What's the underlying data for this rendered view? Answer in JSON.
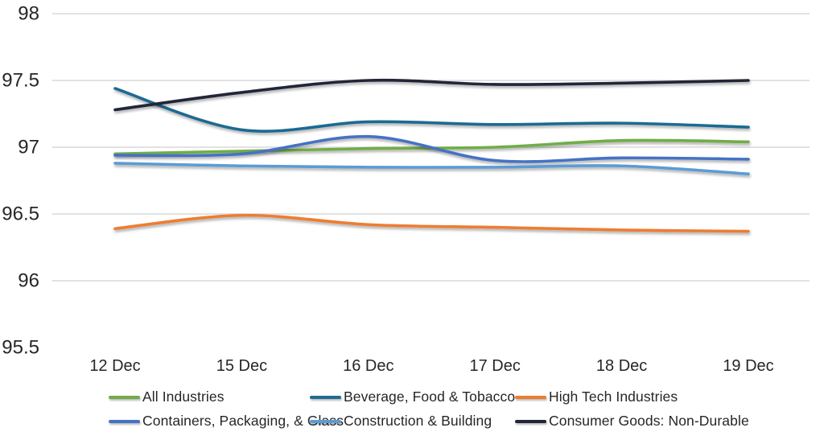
{
  "chart_data": {
    "type": "line",
    "title": "",
    "xlabel": "",
    "ylabel": "",
    "smooth": true,
    "grid": true,
    "legend_position": "bottom",
    "ylim": [
      95.5,
      98
    ],
    "categories": [
      "12 Dec",
      "15 Dec",
      "16 Dec",
      "17 Dec",
      "18 Dec",
      "19 Dec"
    ],
    "y_ticks": [
      {
        "label": "98",
        "value": 98,
        "grid": true
      },
      {
        "label": "97.5",
        "value": 97.5,
        "grid": true
      },
      {
        "label": "97",
        "value": 97,
        "grid": true
      },
      {
        "label": "96.5",
        "value": 96.5,
        "grid": true
      },
      {
        "label": "96",
        "value": 96,
        "grid": true
      },
      {
        "label": "95.5",
        "value": 95.5,
        "grid": false
      }
    ],
    "series": [
      {
        "name": "All Industries",
        "color": "#70AD47",
        "values": [
          96.95,
          96.97,
          96.99,
          97.0,
          97.05,
          97.04
        ]
      },
      {
        "name": "Beverage, Food & Tobacco",
        "color": "#1F6B93",
        "values": [
          97.44,
          97.13,
          97.19,
          97.17,
          97.18,
          97.15
        ]
      },
      {
        "name": "High Tech Industries",
        "color": "#ED7D31",
        "values": [
          96.39,
          96.49,
          96.42,
          96.4,
          96.38,
          96.37
        ]
      },
      {
        "name": "Containers, Packaging, & Glass",
        "color": "#4472C4",
        "values": [
          96.94,
          96.95,
          97.08,
          96.9,
          96.92,
          96.91
        ]
      },
      {
        "name": "Construction & Building",
        "color": "#5B9BD5",
        "values": [
          96.88,
          96.86,
          96.85,
          96.85,
          96.86,
          96.8
        ]
      },
      {
        "name": "Consumer Goods: Non-Durable",
        "color": "#212539",
        "values": [
          97.28,
          97.41,
          97.5,
          97.47,
          97.48,
          97.5
        ]
      }
    ],
    "legend_rows": [
      [
        "All Industries",
        "Beverage, Food & Tobacco",
        "High Tech Industries"
      ],
      [
        "Containers, Packaging, & Glass",
        "Construction & Building",
        "Consumer Goods: Non-Durable"
      ]
    ]
  },
  "colors": {
    "background": "#FFFFFF",
    "gridline": "#E2E2E2",
    "axis_text": "#262626"
  }
}
